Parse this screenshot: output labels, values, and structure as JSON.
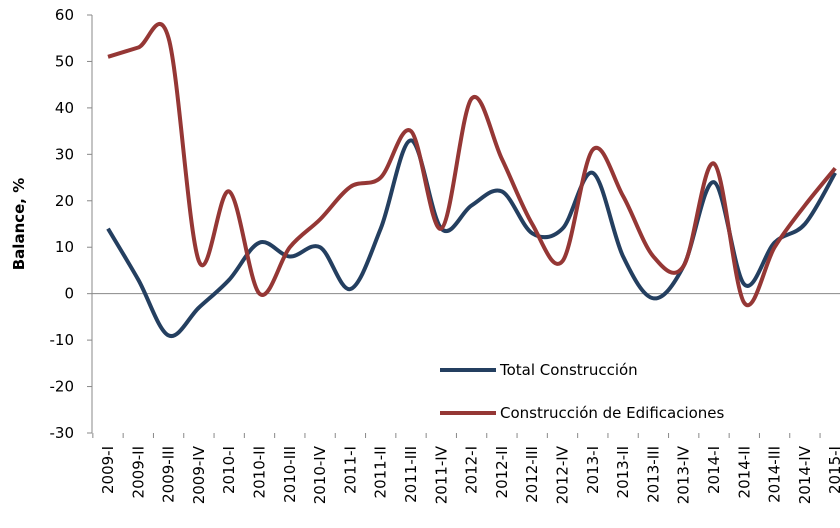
{
  "chart_data": {
    "type": "line",
    "y_label": "Balance, %",
    "categories": [
      "2009-I",
      "2009-II",
      "2009-III",
      "2009-IV",
      "2010-I",
      "2010-II",
      "2010-III",
      "2010-IV",
      "2011-I",
      "2011-II",
      "2011-III",
      "2011-IV",
      "2012-I",
      "2012-II",
      "2012-III",
      "2012-IV",
      "2013-I",
      "2013-II",
      "2013-III",
      "2013-IV",
      "2014-I",
      "2014-II",
      "2014-III",
      "2014-IV",
      "2015-I"
    ],
    "series": [
      {
        "name": "Total Construcción",
        "color": "#243f60",
        "values": [
          14,
          3,
          -9,
          -3,
          3,
          11,
          8,
          10,
          1,
          14,
          33,
          14,
          19,
          22,
          13,
          14,
          26,
          8,
          -1,
          6,
          24,
          2,
          11,
          15,
          26
        ]
      },
      {
        "name": "Construcción de Edificaciones",
        "color": "#953735",
        "values": [
          51,
          53,
          55,
          7,
          22,
          0,
          10,
          16,
          23,
          25,
          35,
          14,
          42,
          29,
          15,
          7,
          31,
          21,
          8,
          6,
          28,
          -2,
          10,
          19,
          27
        ]
      }
    ],
    "ylim": [
      -30,
      60
    ],
    "yticks": [
      -30,
      -20,
      -10,
      0,
      10,
      20,
      30,
      40,
      50,
      60
    ]
  }
}
